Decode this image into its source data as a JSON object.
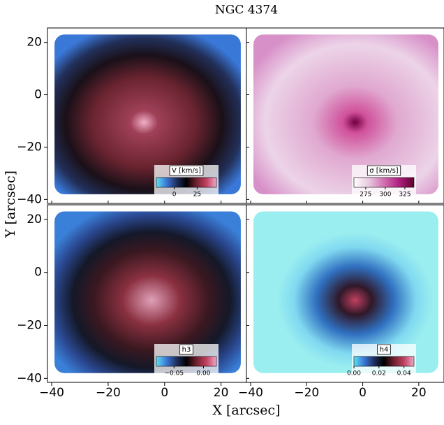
{
  "chart_data": {
    "type": "map",
    "title": "NGC 4374",
    "xlabel": "X [arcsec]",
    "ylabel": "Y [arcsec]",
    "xlim": [
      -41.5,
      29
    ],
    "xticks": [
      {
        "value": -40,
        "label": "−40"
      },
      {
        "value": -20,
        "label": "−20"
      },
      0,
      20
    ],
    "ylim": [
      -41.5,
      25.5
    ],
    "yticks": [
      {
        "value": -40,
        "label": "−40"
      },
      {
        "value": -20,
        "label": "−20"
      },
      0,
      20
    ],
    "panels": [
      {
        "colorbar_label": "V [km/s]",
        "clim": [
          -19.5,
          46
        ],
        "cticks": [
          0,
          25
        ],
        "colormap": [
          "#5ee0f0",
          "#3a78d8",
          "#203060",
          "#000000",
          "#702030",
          "#c04060",
          "#f0a8c8"
        ]
      },
      {
        "colorbar_label": "σ [km/s]",
        "clim": [
          260,
          336.6
        ],
        "cticks": [
          275,
          300,
          325
        ],
        "colormap": [
          "#ffffff",
          "#e8c8e0",
          "#d070b0",
          "#b02080",
          "#600030"
        ]
      },
      {
        "colorbar_label": "h3",
        "clim": [
          -0.08,
          0.022
        ],
        "cticks": [
          {
            "value": -0.05,
            "label": "−0.05"
          },
          {
            "value": 0,
            "label": "0.00"
          }
        ],
        "colormap": [
          "#5ee0f0",
          "#3a78d8",
          "#203060",
          "#000000",
          "#702030",
          "#c04060",
          "#f0a8c8"
        ]
      },
      {
        "colorbar_label": "h4",
        "clim": [
          0,
          0.048
        ],
        "cticks": [
          {
            "value": 0,
            "label": "0.00"
          },
          {
            "value": 0.02,
            "label": "0.02"
          },
          {
            "value": 0.04,
            "label": "0.04"
          }
        ],
        "colormap": [
          "#5ee0f0",
          "#3a78d8",
          "#203060",
          "#000000",
          "#702030",
          "#c04060",
          "#f0a8c8"
        ]
      }
    ]
  }
}
